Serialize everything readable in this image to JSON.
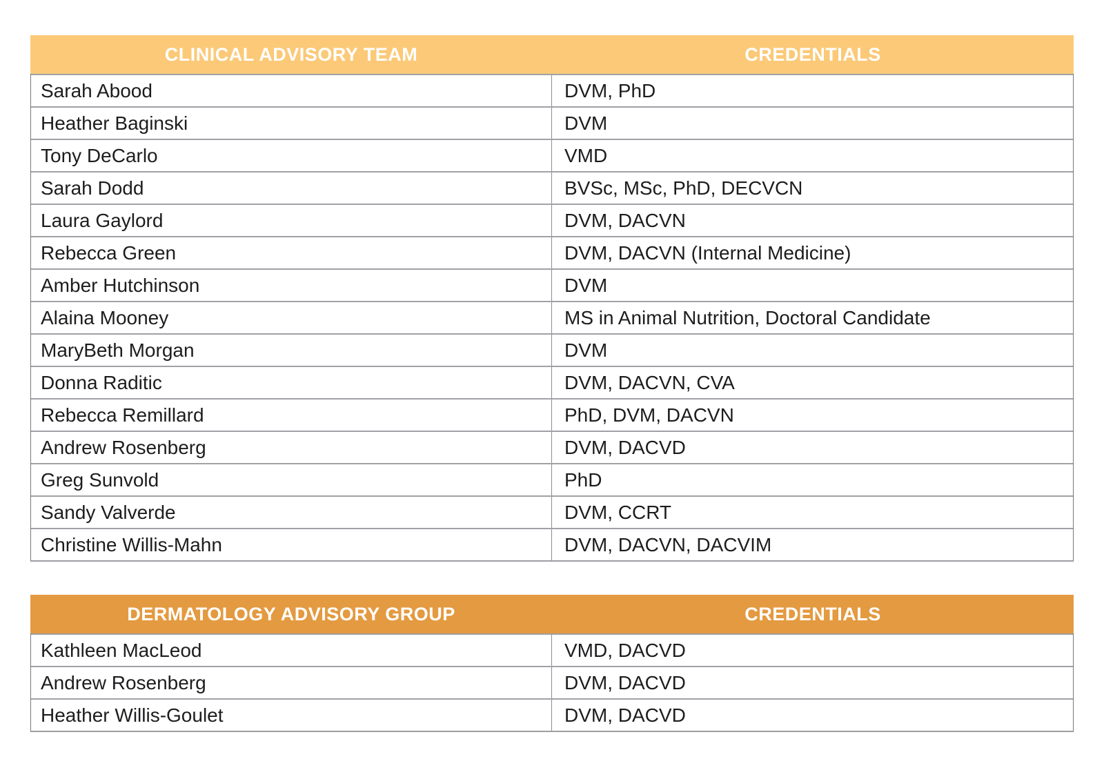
{
  "colors": {
    "table1_header_bg": "#FBC978",
    "table2_header_bg": "#E49A40",
    "header_text": "#ffffff",
    "body_text": "#1d1d1f",
    "row_separator": "#a0a1a5",
    "column_divider": "#8b8c8f",
    "outer_border": "#77787b",
    "page_bg": "#ffffff"
  },
  "tables": [
    {
      "header": {
        "col1": "CLINICAL ADVISORY TEAM",
        "col2": "CREDENTIALS"
      },
      "rows": [
        {
          "name": "Sarah Abood",
          "credentials": "DVM, PhD"
        },
        {
          "name": "Heather Baginski",
          "credentials": "DVM"
        },
        {
          "name": "Tony DeCarlo",
          "credentials": "VMD"
        },
        {
          "name": "Sarah Dodd",
          "credentials": "BVSc, MSc, PhD, DECVCN"
        },
        {
          "name": "Laura Gaylord",
          "credentials": "DVM, DACVN"
        },
        {
          "name": "Rebecca Green",
          "credentials": "DVM, DACVN (Internal Medicine)"
        },
        {
          "name": "Amber Hutchinson",
          "credentials": "DVM"
        },
        {
          "name": "Alaina Mooney",
          "credentials": "MS in Animal Nutrition, Doctoral Candidate"
        },
        {
          "name": "MaryBeth Morgan",
          "credentials": "DVM"
        },
        {
          "name": "Donna Raditic",
          "credentials": "DVM, DACVN, CVA"
        },
        {
          "name": "Rebecca Remillard",
          "credentials": "PhD, DVM, DACVN"
        },
        {
          "name": "Andrew Rosenberg",
          "credentials": "DVM, DACVD"
        },
        {
          "name": "Greg Sunvold",
          "credentials": "PhD"
        },
        {
          "name": "Sandy Valverde",
          "credentials": "DVM, CCRT"
        },
        {
          "name": "Christine Willis-Mahn",
          "credentials": "DVM, DACVN, DACVIM"
        }
      ]
    },
    {
      "header": {
        "col1": "DERMATOLOGY ADVISORY GROUP",
        "col2": "CREDENTIALS"
      },
      "rows": [
        {
          "name": "Kathleen MacLeod",
          "credentials": "VMD, DACVD"
        },
        {
          "name": "Andrew Rosenberg",
          "credentials": "DVM, DACVD"
        },
        {
          "name": "Heather Willis-Goulet",
          "credentials": "DVM, DACVD"
        }
      ]
    }
  ]
}
